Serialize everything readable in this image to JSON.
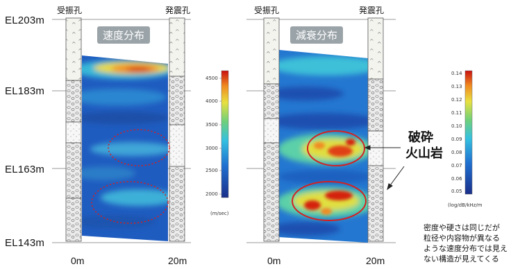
{
  "elevation_labels": [
    "EL203m",
    "EL183m",
    "EL163m",
    "EL143m"
  ],
  "left_panel": {
    "receiver_label": "受振孔",
    "source_label": "発震孔",
    "title": "速度分布",
    "x_start": "0m",
    "x_end": "20m",
    "colorbar_ticks": [
      "4500",
      "4000",
      "3500",
      "3000",
      "2500",
      "2000"
    ],
    "colorbar_unit": "(m/sec)"
  },
  "right_panel": {
    "receiver_label": "受振孔",
    "source_label": "発震孔",
    "title": "減衰分布",
    "x_start": "0m",
    "x_end": "20m",
    "colorbar_ticks": [
      "0.14",
      "0.13",
      "0.12",
      "0.11",
      "0.10",
      "0.09",
      "0.08",
      "0.07",
      "0.06",
      "0.05"
    ],
    "colorbar_unit": "(log/dB/kHz/m"
  },
  "annotation": {
    "line1": "破砕",
    "line2": "火山岩"
  },
  "note": {
    "line1": "密度や硬さは同じだが",
    "line2": "粒径や内容物が異なる",
    "line3": "ような速度分布では見え",
    "line4": "ない構造が見えてくる"
  },
  "colors": {
    "low": "#1a3f9a",
    "mid": "#2a90d8",
    "high_yellow": "#e8e040",
    "high_red": "#d01818",
    "ellipse": "#d42020"
  }
}
